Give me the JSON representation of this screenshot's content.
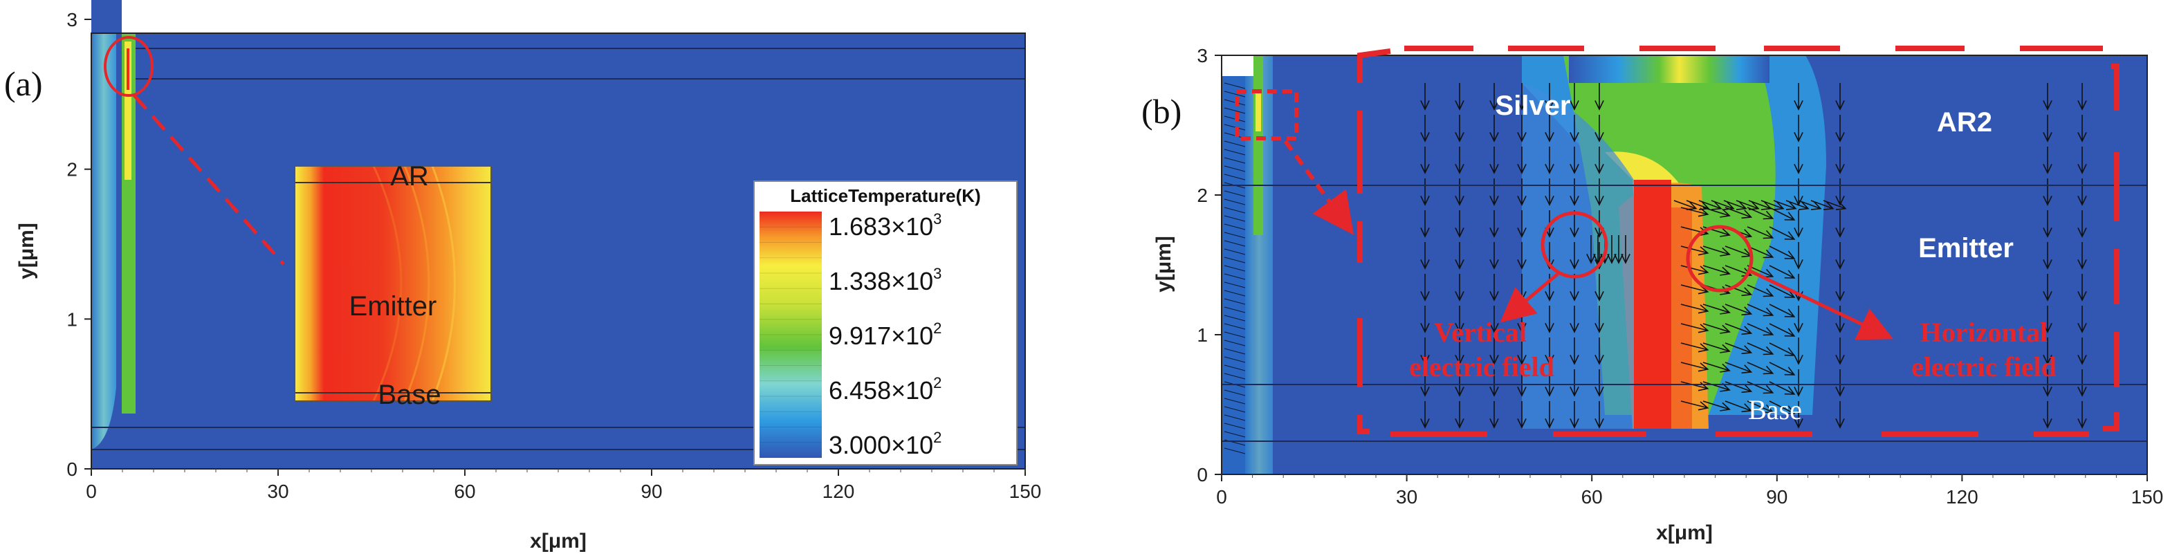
{
  "chart_data": [
    {
      "type": "heatmap",
      "panel_label": "(a)",
      "xlabel": "x[μm]",
      "ylabel": "y[μm]",
      "xlim": [
        0,
        150
      ],
      "ylim": [
        0,
        3
      ],
      "xticks": [
        "0",
        "30",
        "60",
        "90",
        "120",
        "150"
      ],
      "yticks": [
        "0",
        "1",
        "2",
        "3"
      ],
      "regions": [
        "AR",
        "Emitter",
        "Base"
      ],
      "colorbar": {
        "title": "LatticeTemperature(K)",
        "entries": [
          {
            "mantissa": "1.683×10",
            "exponent": "3",
            "value": 1683
          },
          {
            "mantissa": "1.338×10",
            "exponent": "3",
            "value": 1338
          },
          {
            "mantissa": "9.917×10",
            "exponent": "2",
            "value": 991.7
          },
          {
            "mantissa": "6.458×10",
            "exponent": "2",
            "value": 645.8
          },
          {
            "mantissa": "3.000×10",
            "exponent": "2",
            "value": 300
          }
        ],
        "min": 300,
        "max": 1683
      }
    },
    {
      "type": "heatmap",
      "panel_label": "(b)",
      "xlabel": "x[μm]",
      "ylabel": "y[μm]",
      "xlim": [
        0,
        150
      ],
      "ylim": [
        0,
        3
      ],
      "xticks": [
        "0",
        "30",
        "60",
        "90",
        "120",
        "150"
      ],
      "yticks": [
        "0",
        "1",
        "2",
        "3"
      ],
      "regions": [
        "Silver",
        "AR2",
        "Emitter",
        "Base"
      ],
      "annotations": [
        {
          "line1": "Vertical",
          "line2": "electric field"
        },
        {
          "line1": "Horizontal",
          "line2": "electric field"
        }
      ]
    }
  ],
  "colors": {
    "background_field": "#3157b3",
    "hot": "#ef2b1e",
    "annotation": "#e5262b"
  }
}
